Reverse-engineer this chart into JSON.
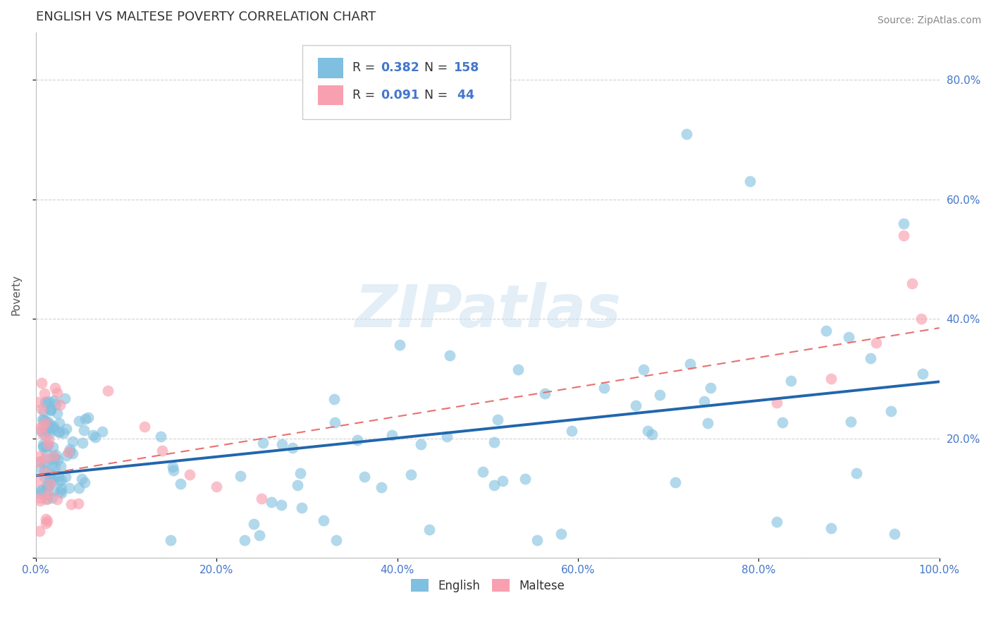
{
  "title": "ENGLISH VS MALTESE POVERTY CORRELATION CHART",
  "source_text": "Source: ZipAtlas.com",
  "ylabel": "Poverty",
  "xlim": [
    0,
    1.0
  ],
  "ylim": [
    0,
    0.88
  ],
  "xticks": [
    0.0,
    0.2,
    0.4,
    0.6,
    0.8,
    1.0
  ],
  "xtick_labels": [
    "0.0%",
    "20.0%",
    "40.0%",
    "60.0%",
    "80.0%",
    "100.0%"
  ],
  "yticks": [
    0.0,
    0.2,
    0.4,
    0.6,
    0.8
  ],
  "ytick_labels_right": [
    "",
    "20.0%",
    "40.0%",
    "60.0%",
    "80.0%"
  ],
  "english_R": 0.382,
  "english_N": 158,
  "maltese_R": 0.091,
  "maltese_N": 44,
  "english_color": "#7fbfdf",
  "maltese_color": "#f8a0b0",
  "english_line_color": "#2166ac",
  "maltese_line_color": "#e87070",
  "title_color": "#333333",
  "tick_label_color": "#4477cc",
  "ylabel_color": "#555555",
  "watermark_color": "#c8dff0",
  "watermark_text": "ZIPatlas",
  "source_color": "#888888",
  "legend_border_color": "#cccccc",
  "eng_line_start_y": 0.138,
  "eng_line_end_y": 0.295,
  "malt_line_start_y": 0.138,
  "malt_line_end_y": 0.385
}
